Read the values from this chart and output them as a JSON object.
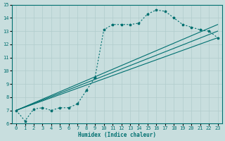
{
  "xlabel": "Humidex (Indice chaleur)",
  "xlim": [
    -0.5,
    23.5
  ],
  "ylim": [
    6,
    15
  ],
  "xticks": [
    0,
    1,
    2,
    3,
    4,
    5,
    6,
    7,
    8,
    9,
    10,
    11,
    12,
    13,
    14,
    15,
    16,
    17,
    18,
    19,
    20,
    21,
    22,
    23
  ],
  "yticks": [
    6,
    7,
    8,
    9,
    10,
    11,
    12,
    13,
    14,
    15
  ],
  "bg_color": "#c8dede",
  "grid_color": "#b0cccc",
  "line_color": "#007070",
  "line1_x": [
    0,
    1,
    2,
    3,
    4,
    5,
    6,
    7,
    8,
    9,
    10,
    11,
    12,
    13,
    14,
    15,
    16,
    17,
    18,
    19,
    20,
    21,
    22,
    23
  ],
  "line1_y": [
    7.0,
    6.2,
    7.1,
    7.2,
    7.0,
    7.2,
    7.2,
    7.5,
    8.5,
    9.5,
    13.1,
    13.5,
    13.5,
    13.5,
    13.6,
    14.3,
    14.6,
    14.5,
    14.0,
    13.5,
    13.3,
    13.1,
    13.0,
    12.5
  ],
  "line2_x": [
    0,
    23
  ],
  "line2_y": [
    7.0,
    12.5
  ],
  "line3_x": [
    0,
    23
  ],
  "line3_y": [
    7.0,
    13.0
  ],
  "line4_x": [
    0,
    23
  ],
  "line4_y": [
    7.0,
    13.5
  ]
}
